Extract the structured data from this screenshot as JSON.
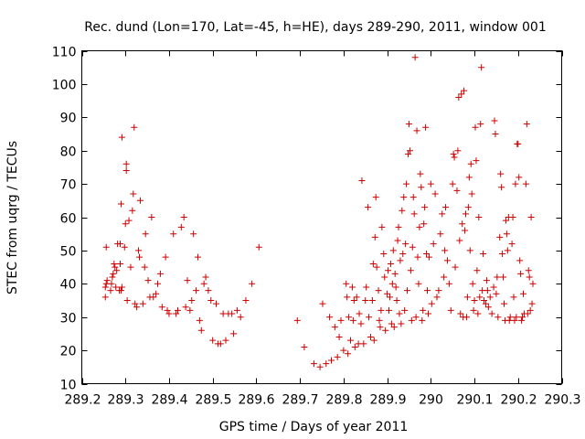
{
  "chart_data": {
    "type": "scatter",
    "title": "Rec. dund (Lon=170, Lat=-45, h=HE), days 289-290, 2011, window 001",
    "xlabel": "GPS time / Days of year 2011",
    "ylabel": "STEC from uqrg / TECUs",
    "xlim": [
      289.2,
      290.3
    ],
    "ylim": [
      10,
      110
    ],
    "x_ticks": [
      289.2,
      289.3,
      289.4,
      289.5,
      289.6,
      289.7,
      289.8,
      289.9,
      290.0,
      290.1,
      290.2,
      290.3
    ],
    "x_tick_labels": [
      "289.2",
      "289.3",
      "289.4",
      "289.5",
      "289.6",
      "289.7",
      "289.8",
      "289.9",
      "290",
      "290.1",
      "290.2",
      "290.3"
    ],
    "y_ticks": [
      10,
      20,
      30,
      40,
      50,
      60,
      70,
      80,
      90,
      100,
      110
    ],
    "y_tick_labels": [
      "10",
      "20",
      "30",
      "40",
      "50",
      "60",
      "70",
      "80",
      "90",
      "100",
      "110"
    ],
    "grid": false,
    "marker": "plus",
    "color": "#cc0000",
    "points": [
      [
        289.254,
        36
      ],
      [
        289.254,
        39
      ],
      [
        289.256,
        40
      ],
      [
        289.258,
        41
      ],
      [
        289.256,
        51
      ],
      [
        289.266,
        38
      ],
      [
        289.268,
        40
      ],
      [
        289.27,
        42
      ],
      [
        289.272,
        43
      ],
      [
        289.274,
        46
      ],
      [
        289.276,
        45
      ],
      [
        289.278,
        39
      ],
      [
        289.28,
        44
      ],
      [
        289.282,
        52
      ],
      [
        289.286,
        38
      ],
      [
        289.29,
        38
      ],
      [
        289.292,
        39
      ],
      [
        289.288,
        46
      ],
      [
        289.288,
        52
      ],
      [
        289.29,
        64
      ],
      [
        289.292,
        84
      ],
      [
        289.298,
        51
      ],
      [
        289.3,
        58
      ],
      [
        289.302,
        74
      ],
      [
        289.302,
        76
      ],
      [
        289.304,
        35
      ],
      [
        289.308,
        59
      ],
      [
        289.312,
        45
      ],
      [
        289.316,
        62
      ],
      [
        289.318,
        67
      ],
      [
        289.32,
        87
      ],
      [
        289.322,
        34
      ],
      [
        289.326,
        33
      ],
      [
        289.33,
        50
      ],
      [
        289.332,
        48
      ],
      [
        289.334,
        65
      ],
      [
        289.34,
        34
      ],
      [
        289.344,
        45
      ],
      [
        289.346,
        55
      ],
      [
        289.352,
        41
      ],
      [
        289.356,
        36
      ],
      [
        289.36,
        60
      ],
      [
        289.364,
        36
      ],
      [
        289.37,
        37
      ],
      [
        289.374,
        40
      ],
      [
        289.38,
        43
      ],
      [
        289.384,
        33
      ],
      [
        289.392,
        48
      ],
      [
        289.396,
        32
      ],
      [
        289.4,
        31
      ],
      [
        289.41,
        55
      ],
      [
        289.416,
        31
      ],
      [
        289.42,
        32
      ],
      [
        289.428,
        57
      ],
      [
        289.434,
        60
      ],
      [
        289.438,
        33
      ],
      [
        289.442,
        41
      ],
      [
        289.448,
        32
      ],
      [
        289.452,
        35
      ],
      [
        289.456,
        55
      ],
      [
        289.462,
        38
      ],
      [
        289.466,
        48
      ],
      [
        289.47,
        29
      ],
      [
        289.474,
        26
      ],
      [
        289.48,
        40
      ],
      [
        289.484,
        42
      ],
      [
        289.49,
        38
      ],
      [
        289.496,
        35
      ],
      [
        289.5,
        23
      ],
      [
        289.508,
        34
      ],
      [
        289.512,
        22
      ],
      [
        289.518,
        22
      ],
      [
        289.524,
        31
      ],
      [
        289.53,
        23
      ],
      [
        289.536,
        31
      ],
      [
        289.544,
        31
      ],
      [
        289.548,
        25
      ],
      [
        289.556,
        32
      ],
      [
        289.564,
        30
      ],
      [
        289.576,
        35
      ],
      [
        289.59,
        40
      ],
      [
        289.606,
        51
      ],
      [
        289.694,
        29
      ],
      [
        289.71,
        21
      ],
      [
        289.732,
        16
      ],
      [
        289.746,
        15
      ],
      [
        289.752,
        34
      ],
      [
        289.76,
        16
      ],
      [
        289.768,
        30
      ],
      [
        289.772,
        17
      ],
      [
        289.78,
        27
      ],
      [
        289.786,
        18
      ],
      [
        289.79,
        24
      ],
      [
        289.794,
        29
      ],
      [
        289.8,
        20
      ],
      [
        289.806,
        40
      ],
      [
        289.808,
        36
      ],
      [
        289.81,
        19
      ],
      [
        289.812,
        30
      ],
      [
        289.816,
        23
      ],
      [
        289.82,
        39
      ],
      [
        289.822,
        29
      ],
      [
        289.824,
        35
      ],
      [
        289.826,
        21
      ],
      [
        289.83,
        36
      ],
      [
        289.834,
        22
      ],
      [
        289.836,
        31
      ],
      [
        289.84,
        28
      ],
      [
        289.842,
        71
      ],
      [
        289.846,
        22
      ],
      [
        289.85,
        35
      ],
      [
        289.852,
        39
      ],
      [
        289.856,
        63
      ],
      [
        289.858,
        30
      ],
      [
        289.862,
        24
      ],
      [
        289.866,
        35
      ],
      [
        289.868,
        46
      ],
      [
        289.87,
        23
      ],
      [
        289.872,
        54
      ],
      [
        289.874,
        66
      ],
      [
        289.876,
        45
      ],
      [
        289.88,
        38
      ],
      [
        289.882,
        29
      ],
      [
        289.884,
        27
      ],
      [
        289.886,
        32
      ],
      [
        289.888,
        57
      ],
      [
        289.892,
        49
      ],
      [
        289.894,
        42
      ],
      [
        289.896,
        26
      ],
      [
        289.9,
        37
      ],
      [
        289.902,
        44
      ],
      [
        289.904,
        32
      ],
      [
        289.906,
        36
      ],
      [
        289.908,
        46
      ],
      [
        289.91,
        28
      ],
      [
        289.912,
        40
      ],
      [
        289.914,
        50
      ],
      [
        289.916,
        27
      ],
      [
        289.918,
        43
      ],
      [
        289.92,
        39
      ],
      [
        289.922,
        35
      ],
      [
        289.924,
        53
      ],
      [
        289.926,
        57
      ],
      [
        289.928,
        31
      ],
      [
        289.93,
        47
      ],
      [
        289.932,
        28
      ],
      [
        289.934,
        62
      ],
      [
        289.936,
        49
      ],
      [
        289.938,
        66
      ],
      [
        289.94,
        32
      ],
      [
        289.942,
        52
      ],
      [
        289.944,
        70
      ],
      [
        289.946,
        38
      ],
      [
        289.948,
        79
      ],
      [
        289.95,
        88
      ],
      [
        289.952,
        80
      ],
      [
        289.954,
        44
      ],
      [
        289.956,
        29
      ],
      [
        289.958,
        51
      ],
      [
        289.96,
        66
      ],
      [
        289.962,
        61
      ],
      [
        289.964,
        108
      ],
      [
        289.966,
        30
      ],
      [
        289.968,
        86
      ],
      [
        289.97,
        48
      ],
      [
        289.972,
        40
      ],
      [
        289.974,
        57
      ],
      [
        289.976,
        73
      ],
      [
        289.978,
        69
      ],
      [
        289.98,
        29
      ],
      [
        289.982,
        32
      ],
      [
        289.984,
        58
      ],
      [
        289.986,
        63
      ],
      [
        289.988,
        87
      ],
      [
        289.99,
        49
      ],
      [
        289.992,
        38
      ],
      [
        289.994,
        31
      ],
      [
        289.996,
        48
      ],
      [
        290.0,
        70
      ],
      [
        290.002,
        34
      ],
      [
        290.006,
        52
      ],
      [
        290.01,
        67
      ],
      [
        290.014,
        36
      ],
      [
        290.018,
        38
      ],
      [
        290.022,
        55
      ],
      [
        290.026,
        61
      ],
      [
        290.03,
        42
      ],
      [
        290.032,
        50
      ],
      [
        290.034,
        63
      ],
      [
        290.038,
        47
      ],
      [
        290.042,
        40
      ],
      [
        290.046,
        32
      ],
      [
        290.05,
        70
      ],
      [
        290.052,
        79
      ],
      [
        290.054,
        78
      ],
      [
        290.056,
        45
      ],
      [
        290.06,
        68
      ],
      [
        290.062,
        80
      ],
      [
        290.064,
        96
      ],
      [
        290.066,
        53
      ],
      [
        290.068,
        31
      ],
      [
        290.07,
        97
      ],
      [
        290.072,
        58
      ],
      [
        290.074,
        30
      ],
      [
        290.076,
        98
      ],
      [
        290.078,
        56
      ],
      [
        290.08,
        61
      ],
      [
        290.082,
        30
      ],
      [
        290.084,
        36
      ],
      [
        290.086,
        63
      ],
      [
        290.088,
        72
      ],
      [
        290.09,
        50
      ],
      [
        290.092,
        76
      ],
      [
        290.094,
        67
      ],
      [
        290.096,
        40
      ],
      [
        290.098,
        32
      ],
      [
        290.1,
        35
      ],
      [
        290.102,
        87
      ],
      [
        290.104,
        77
      ],
      [
        290.106,
        44
      ],
      [
        290.108,
        31
      ],
      [
        290.11,
        60
      ],
      [
        290.112,
        36
      ],
      [
        290.114,
        88
      ],
      [
        290.116,
        105
      ],
      [
        290.118,
        38
      ],
      [
        290.12,
        49
      ],
      [
        290.122,
        35
      ],
      [
        290.126,
        34
      ],
      [
        290.128,
        41
      ],
      [
        290.13,
        38
      ],
      [
        290.132,
        33
      ],
      [
        290.136,
        36
      ],
      [
        290.14,
        31
      ],
      [
        290.144,
        39
      ],
      [
        290.146,
        89
      ],
      [
        290.148,
        85
      ],
      [
        290.15,
        37
      ],
      [
        290.152,
        42
      ],
      [
        290.154,
        30
      ],
      [
        290.158,
        54
      ],
      [
        290.16,
        73
      ],
      [
        290.162,
        69
      ],
      [
        290.164,
        49
      ],
      [
        290.166,
        42
      ],
      [
        290.168,
        34
      ],
      [
        290.17,
        29
      ],
      [
        290.172,
        59
      ],
      [
        290.174,
        55
      ],
      [
        290.176,
        50
      ],
      [
        290.178,
        60
      ],
      [
        290.18,
        29
      ],
      [
        290.182,
        30
      ],
      [
        290.186,
        52
      ],
      [
        290.188,
        60
      ],
      [
        290.19,
        36
      ],
      [
        290.192,
        29
      ],
      [
        290.194,
        70
      ],
      [
        290.196,
        30
      ],
      [
        290.198,
        82
      ],
      [
        290.2,
        82
      ],
      [
        290.202,
        72
      ],
      [
        290.204,
        47
      ],
      [
        290.206,
        43
      ],
      [
        290.208,
        29
      ],
      [
        290.21,
        30
      ],
      [
        290.212,
        37
      ],
      [
        290.214,
        31
      ],
      [
        290.218,
        70
      ],
      [
        290.22,
        88
      ],
      [
        290.222,
        31
      ],
      [
        290.224,
        44
      ],
      [
        290.226,
        42
      ],
      [
        290.228,
        32
      ],
      [
        290.23,
        60
      ],
      [
        290.232,
        34
      ],
      [
        290.234,
        40
      ]
    ]
  }
}
